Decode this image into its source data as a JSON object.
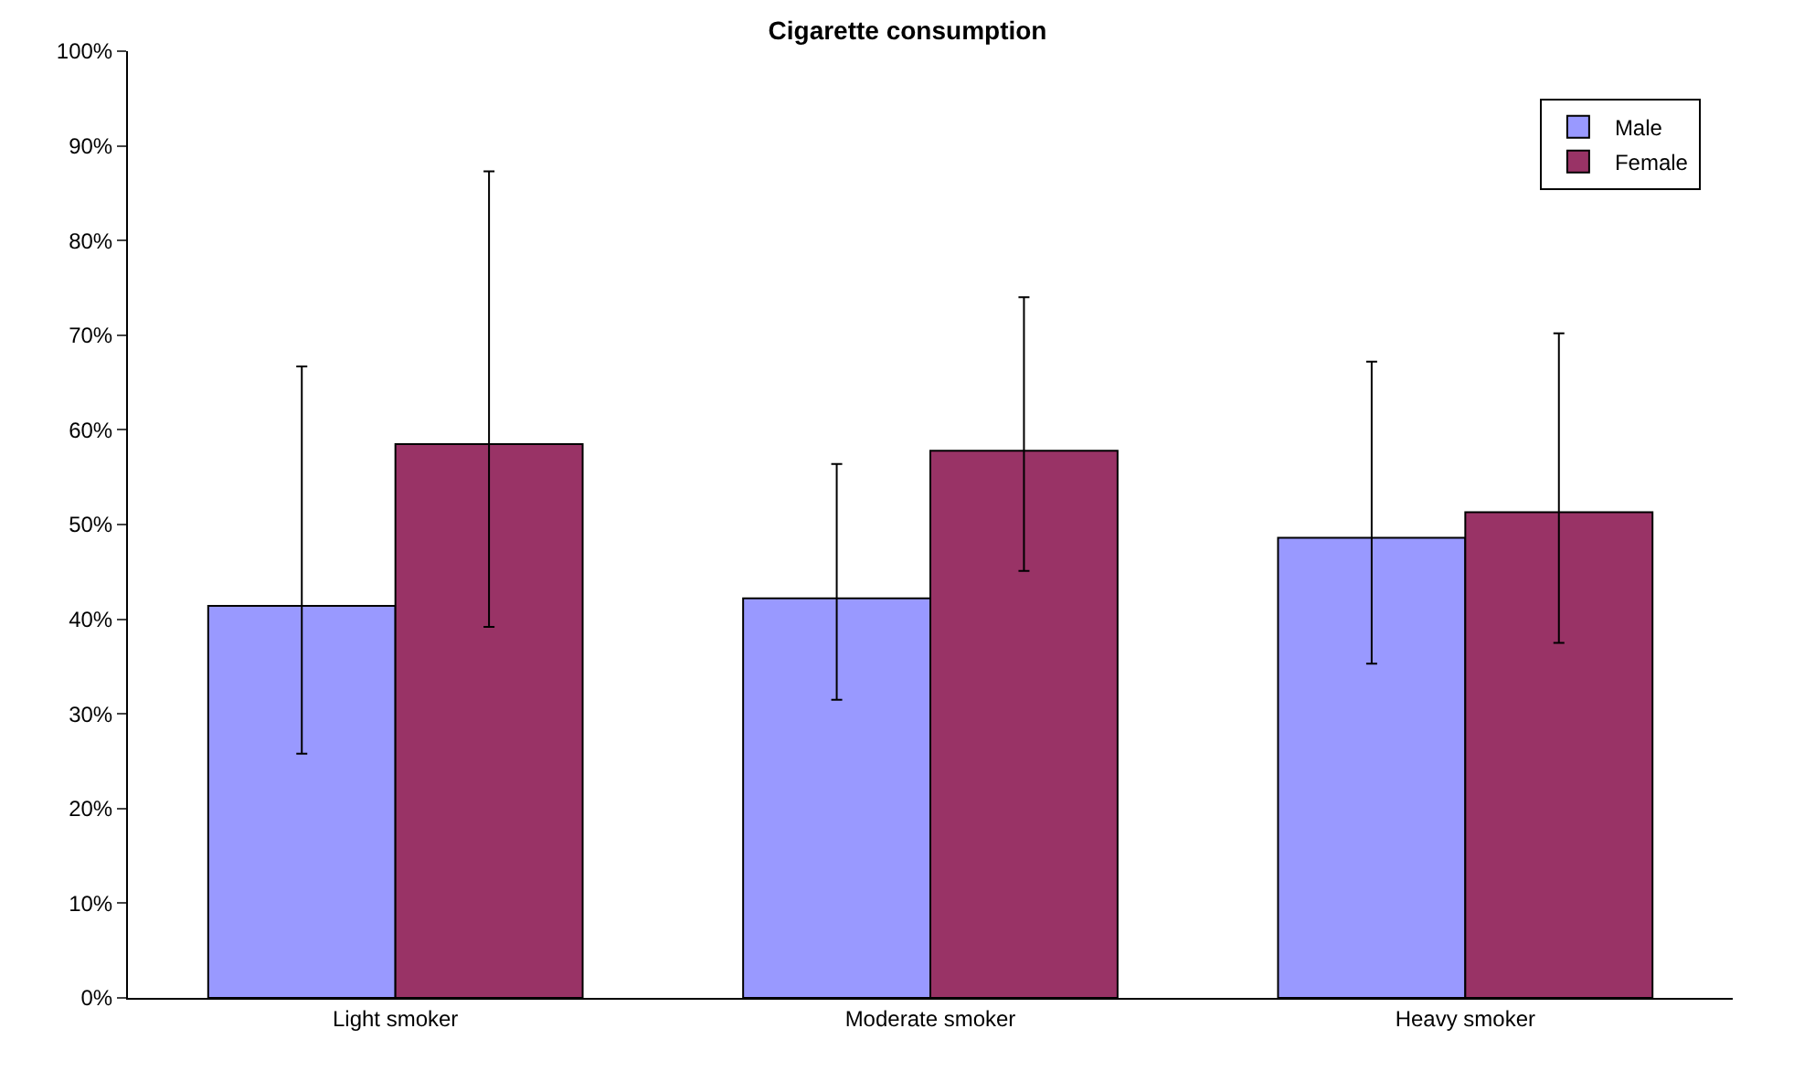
{
  "chart_data": {
    "type": "bar",
    "title": "Cigarette consumption",
    "categories": [
      "Light smoker",
      "Moderate smoker",
      "Heavy smoker"
    ],
    "series": [
      {
        "name": "Male",
        "color": "#9999ff",
        "values": [
          41.4,
          42.2,
          48.6
        ],
        "errors": [
          [
            25.8,
            66.7
          ],
          [
            31.5,
            56.4
          ],
          [
            35.3,
            67.2
          ]
        ]
      },
      {
        "name": "Female",
        "color": "#993366",
        "values": [
          58.5,
          57.8,
          51.3
        ],
        "errors": [
          [
            39.2,
            87.3
          ],
          [
            45.1,
            74.0
          ],
          [
            37.5,
            70.2
          ]
        ]
      }
    ],
    "ylim": [
      0,
      100
    ],
    "yticks": [
      {
        "value": 0,
        "label": "0%"
      },
      {
        "value": 10,
        "label": "10%"
      },
      {
        "value": 20,
        "label": "20%"
      },
      {
        "value": 30,
        "label": "30%"
      },
      {
        "value": 40,
        "label": "40%"
      },
      {
        "value": 50,
        "label": "50%"
      },
      {
        "value": 60,
        "label": "60%"
      },
      {
        "value": 70,
        "label": "70%"
      },
      {
        "value": 80,
        "label": "80%"
      },
      {
        "value": 90,
        "label": "90%"
      },
      {
        "value": 100,
        "label": "100%"
      }
    ],
    "grid": false,
    "legend": "top right"
  }
}
